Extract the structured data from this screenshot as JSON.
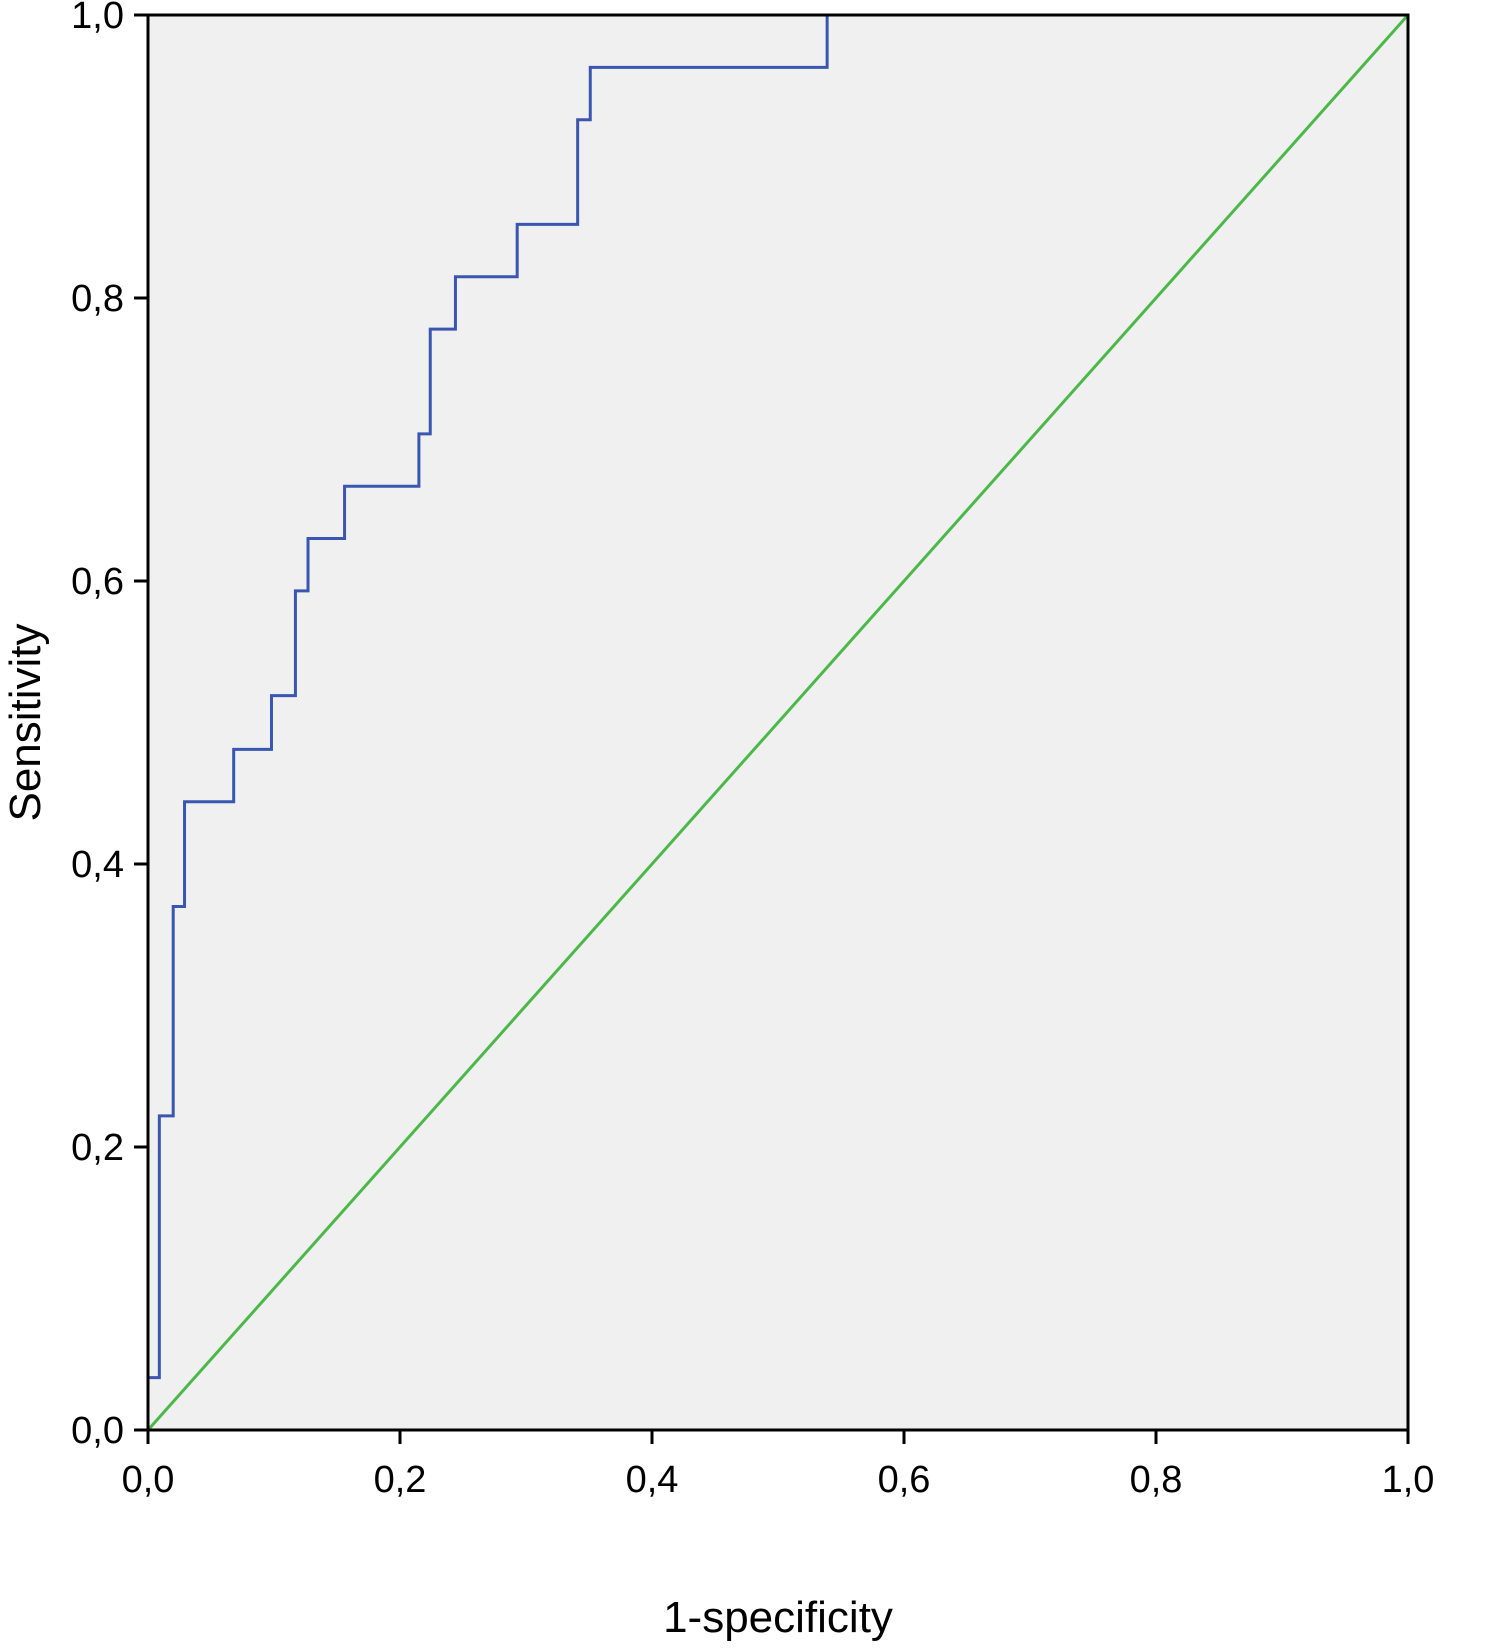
{
  "chart_data": {
    "type": "line",
    "title": "",
    "xlabel": "1-specificity",
    "ylabel": "Sensitivity",
    "xlim": [
      0.0,
      1.0
    ],
    "ylim": [
      0.0,
      1.0
    ],
    "x_ticks": [
      "0,0",
      "0,2",
      "0,4",
      "0,6",
      "0,8",
      "1,0"
    ],
    "y_ticks": [
      "0,0",
      "0,2",
      "0,4",
      "0,6",
      "0,8",
      "1,0"
    ],
    "x_tick_values": [
      0.0,
      0.2,
      0.4,
      0.6,
      0.8,
      1.0
    ],
    "y_tick_values": [
      0.0,
      0.2,
      0.4,
      0.6,
      0.8,
      1.0
    ],
    "grid": false,
    "legend": "none",
    "plot_background": "#f0f0f0",
    "series": [
      {
        "color": "#3a56b0",
        "style": "step",
        "points": [
          [
            0.0,
            0.0
          ],
          [
            0.0,
            0.037
          ],
          [
            0.009,
            0.037
          ],
          [
            0.009,
            0.222
          ],
          [
            0.02,
            0.222
          ],
          [
            0.02,
            0.37
          ],
          [
            0.029,
            0.37
          ],
          [
            0.029,
            0.444
          ],
          [
            0.068,
            0.444
          ],
          [
            0.068,
            0.481
          ],
          [
            0.098,
            0.481
          ],
          [
            0.098,
            0.519
          ],
          [
            0.117,
            0.519
          ],
          [
            0.117,
            0.593
          ],
          [
            0.127,
            0.593
          ],
          [
            0.127,
            0.63
          ],
          [
            0.156,
            0.63
          ],
          [
            0.156,
            0.667
          ],
          [
            0.215,
            0.667
          ],
          [
            0.215,
            0.704
          ],
          [
            0.224,
            0.704
          ],
          [
            0.224,
            0.778
          ],
          [
            0.244,
            0.778
          ],
          [
            0.244,
            0.815
          ],
          [
            0.293,
            0.815
          ],
          [
            0.293,
            0.852
          ],
          [
            0.341,
            0.852
          ],
          [
            0.341,
            0.926
          ],
          [
            0.351,
            0.926
          ],
          [
            0.351,
            0.963
          ],
          [
            0.539,
            0.963
          ],
          [
            0.539,
            1.0
          ],
          [
            1.0,
            1.0
          ]
        ]
      },
      {
        "color": "#4cb84a",
        "style": "reference",
        "points": [
          [
            0.0,
            0.0
          ],
          [
            1.0,
            1.0
          ]
        ]
      }
    ]
  }
}
